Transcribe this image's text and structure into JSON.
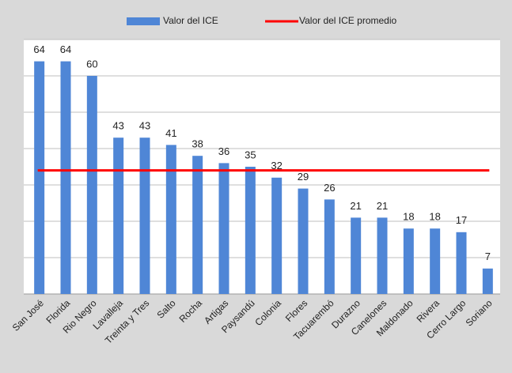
{
  "chart_data": {
    "type": "bar",
    "categories": [
      "San José",
      "Florida",
      "Rio Negro",
      "Lavalleja",
      "Treinta y Tres",
      "Salto",
      "Rocha",
      "Artigas",
      "Paysandú",
      "Colonia",
      "Flores",
      "Tacuarembó",
      "Durazno",
      "Canelones",
      "Maldonado",
      "Rivera",
      "Cerro Largo",
      "Soriano"
    ],
    "series": [
      {
        "name": "Valor del ICE",
        "color": "#4f86d6",
        "values": [
          64,
          64,
          60,
          43,
          43,
          41,
          38,
          36,
          35,
          32,
          29,
          26,
          21,
          21,
          18,
          18,
          17,
          7
        ]
      }
    ],
    "average": {
      "name": "Valor del ICE promedio",
      "color": "#ff0000",
      "value": 34
    },
    "ylim": [
      0,
      70
    ],
    "yticks": [
      0,
      10,
      20,
      30,
      40,
      50,
      60,
      70
    ],
    "grid": true,
    "legend": "top"
  }
}
